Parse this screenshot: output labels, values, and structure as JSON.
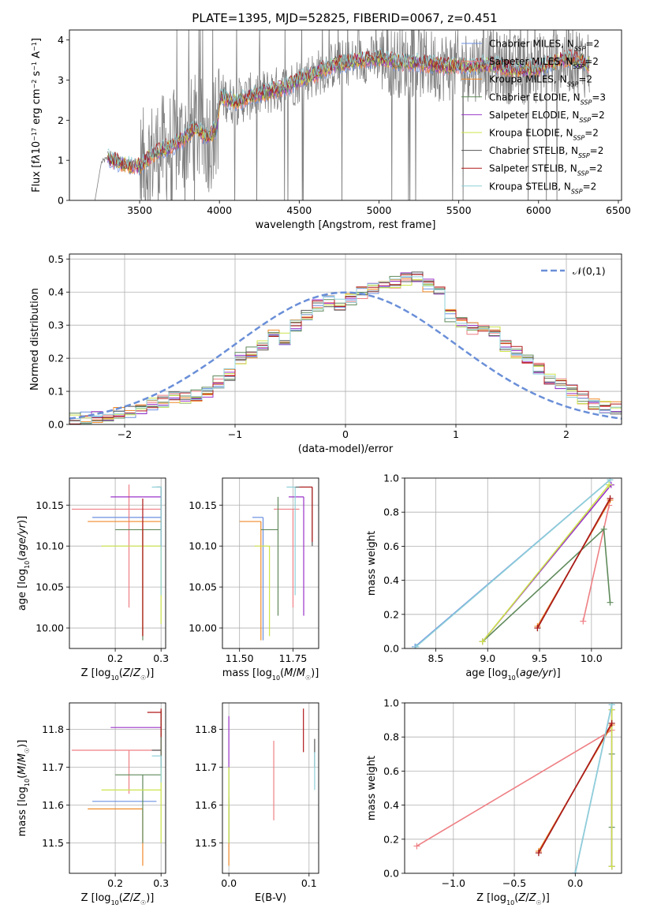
{
  "figure": {
    "title": "PLATE=1395, MJD=52825, FIBERID=0067, z=0.451"
  },
  "models": [
    {
      "name": "Chabrier MILES",
      "label_pre": "Chabrier MILES, N",
      "label_post": "=2",
      "color": "#6a8fe0",
      "n_ssp": 2
    },
    {
      "name": "Salpeter MILES",
      "label_pre": "Salpeter MILES, N",
      "label_post": "=2",
      "color": "#ee7f84",
      "n_ssp": 2
    },
    {
      "name": "Kroupa MILES",
      "label_pre": "Kroupa MILES, N",
      "label_post": "=2",
      "color": "#f08a28",
      "n_ssp": 2
    },
    {
      "name": "Chabrier ELODIE",
      "label_pre": "Chabrier ELODIE, N",
      "label_post": "=3",
      "color": "#5f8a5a",
      "n_ssp": 3
    },
    {
      "name": "Salpeter ELODIE",
      "label_pre": "Salpeter ELODIE, N",
      "label_post": "=2",
      "color": "#9a33c8",
      "n_ssp": 2
    },
    {
      "name": "Kroupa ELODIE",
      "label_pre": "Kroupa ELODIE, N",
      "label_post": "=2",
      "color": "#cce34a",
      "n_ssp": 2
    },
    {
      "name": "Chabrier STELIB",
      "label_pre": "Chabrier STELIB, N",
      "label_post": "=2",
      "color": "#555555",
      "n_ssp": 2
    },
    {
      "name": "Salpeter STELIB",
      "label_pre": "Salpeter STELIB, N",
      "label_post": "=2",
      "color": "#b01818",
      "n_ssp": 2
    },
    {
      "name": "Kroupa STELIB",
      "label_pre": "Kroupa STELIB, N",
      "label_post": "=2",
      "color": "#8fd0d8",
      "n_ssp": 2
    }
  ],
  "chart_data": [
    {
      "id": "spectrum",
      "type": "line",
      "xlabel": "wavelength [Angstrom, rest frame]",
      "ylabel_html": "Flux [f<tspan font-style='italic'>λ</tspan>10<tspan baseline-shift='super' font-size='8'>−17</tspan> erg cm<tspan baseline-shift='super' font-size='8'>−2</tspan> s<tspan baseline-shift='super' font-size='8'>−1</tspan> A<tspan baseline-shift='super' font-size='8'>−1</tspan>]",
      "xlim": [
        3060,
        6520
      ],
      "ylim": [
        0,
        4.25
      ],
      "xticks": [
        3500,
        4000,
        4500,
        5000,
        5500,
        6000,
        6500
      ],
      "yticks": [
        0,
        1,
        2,
        3,
        4
      ],
      "data_color": "#808080",
      "data_start": 3220,
      "noise_start": 3500,
      "continuum": {
        "x": [
          3220,
          3260,
          3300,
          3400,
          3500,
          3600,
          3700,
          3780,
          3850,
          3930,
          3980,
          4010,
          4100,
          4200,
          4300,
          4400,
          4500,
          4600,
          4700,
          4800,
          4900,
          5000,
          5100,
          5200,
          5300,
          5400,
          5500,
          5600,
          5700,
          5800,
          5900,
          6000,
          6100,
          6200,
          6320
        ],
        "y": [
          0.0,
          0.95,
          1.05,
          0.9,
          0.85,
          1.2,
          1.35,
          1.55,
          1.8,
          1.55,
          1.8,
          2.6,
          2.45,
          2.6,
          2.7,
          2.8,
          3.0,
          3.15,
          3.35,
          3.45,
          3.5,
          3.55,
          3.45,
          3.45,
          3.4,
          3.35,
          3.35,
          3.35,
          3.4,
          3.3,
          3.25,
          3.3,
          3.45,
          3.55,
          3.4
        ]
      },
      "model_x_range": [
        3300,
        6320
      ]
    },
    {
      "id": "residuals",
      "type": "histogram",
      "xlabel": "(data-model)/error",
      "ylabel": "Normed distribution",
      "xlim": [
        -2.5,
        2.5
      ],
      "ylim": [
        0,
        0.515
      ],
      "xticks": [
        -2,
        -1,
        0,
        1,
        2
      ],
      "xtick_labels": [
        "−2",
        "−1",
        "0",
        "1",
        "2"
      ],
      "yticks": [
        0.0,
        0.1,
        0.2,
        0.3,
        0.4,
        0.5
      ],
      "ytick_labels": [
        "0.0",
        "0.1",
        "0.2",
        "0.3",
        "0.4",
        "0.5"
      ],
      "legend": "𝒩(0,1)",
      "normal_color": "#6a8fd8",
      "bin_width": 0.1,
      "bin_start": -2.5,
      "base_counts": [
        0.02,
        0.02,
        0.025,
        0.03,
        0.035,
        0.04,
        0.05,
        0.06,
        0.07,
        0.08,
        0.08,
        0.09,
        0.1,
        0.13,
        0.15,
        0.2,
        0.22,
        0.24,
        0.27,
        0.26,
        0.3,
        0.33,
        0.36,
        0.37,
        0.36,
        0.38,
        0.4,
        0.41,
        0.42,
        0.43,
        0.44,
        0.45,
        0.42,
        0.41,
        0.33,
        0.31,
        0.29,
        0.3,
        0.28,
        0.24,
        0.22,
        0.19,
        0.17,
        0.14,
        0.12,
        0.1,
        0.08,
        0.06,
        0.05,
        0.05
      ]
    },
    {
      "id": "age-vs-Z",
      "type": "errorbar",
      "xlabel_html": "Z [log<tspan baseline-shift='sub' font-size='8'>10</tspan>(<tspan font-style='italic'>Z</tspan>/<tspan font-style='italic'>Z</tspan><tspan baseline-shift='sub' font-size='8'>☉</tspan>)]",
      "ylabel_html": "age  [log<tspan baseline-shift='sub' font-size='8'>10</tspan>(<tspan font-style='italic'>age/yr</tspan>)]",
      "xlim": [
        0.1,
        0.31
      ],
      "ylim": [
        9.975,
        10.183
      ],
      "xticks": [
        0.2,
        0.3
      ],
      "xtick_labels": [
        "0.2",
        "0.3"
      ],
      "yticks": [
        10.0,
        10.05,
        10.1,
        10.15
      ],
      "ytick_labels": [
        "10.00",
        "10.05",
        "10.10",
        "10.15"
      ],
      "points": [
        {
          "m": 0,
          "x": 0.3,
          "y": 10.135,
          "xlo": 0.15,
          "xhi": 0.3,
          "ylo": 10.135,
          "yhi": 10.135
        },
        {
          "m": 1,
          "x": 0.23,
          "y": 10.145,
          "xlo": 0.105,
          "xhi": 0.3,
          "ylo": 10.025,
          "yhi": 10.175
        },
        {
          "m": 2,
          "x": 0.26,
          "y": 10.13,
          "xlo": 0.14,
          "xhi": 0.3,
          "ylo": 9.99,
          "yhi": 10.13
        },
        {
          "m": 3,
          "x": 0.26,
          "y": 10.12,
          "xlo": 0.2,
          "xhi": 0.3,
          "ylo": 9.985,
          "yhi": 10.12
        },
        {
          "m": 4,
          "x": 0.3,
          "y": 10.16,
          "xlo": 0.19,
          "xhi": 0.3,
          "ylo": 10.16,
          "yhi": 10.16
        },
        {
          "m": 5,
          "x": 0.3,
          "y": 10.1,
          "xlo": 0.17,
          "xhi": 0.3,
          "ylo": 10.005,
          "yhi": 10.1
        },
        {
          "m": 6,
          "x": 0.3,
          "y": 10.172,
          "xlo": 0.29,
          "xhi": 0.3,
          "ylo": 10.1,
          "yhi": 10.172
        },
        {
          "m": 7,
          "x": 0.26,
          "y": 10.158,
          "xlo": 0.26,
          "xhi": 0.26,
          "ylo": 9.99,
          "yhi": 10.158
        },
        {
          "m": 8,
          "x": 0.3,
          "y": 10.172,
          "xlo": 0.28,
          "xhi": 0.3,
          "ylo": 10.04,
          "yhi": 10.172
        }
      ]
    },
    {
      "id": "age-vs-mass",
      "type": "errorbar",
      "xlabel_html": "mass [log<tspan baseline-shift='sub' font-size='8'>10</tspan>(<tspan font-style='italic'>M</tspan>/<tspan font-style='italic'>M</tspan><tspan baseline-shift='sub' font-size='8'>☉</tspan>)]",
      "xlim": [
        11.42,
        11.87
      ],
      "ylim": [
        9.975,
        10.183
      ],
      "xticks": [
        11.5,
        11.75
      ],
      "xtick_labels": [
        "11.50",
        "11.75"
      ],
      "yticks": [
        10.0,
        10.05,
        10.1,
        10.15
      ],
      "ytick_labels": [
        "10.00",
        "10.05",
        "10.10",
        "10.15"
      ],
      "points": [
        {
          "m": 0,
          "x": 11.61,
          "y": 10.135,
          "xlo": 11.56,
          "xhi": 11.61,
          "ylo": 9.985,
          "yhi": 10.135
        },
        {
          "m": 1,
          "x": 11.75,
          "y": 10.145,
          "xlo": 11.66,
          "xhi": 11.78,
          "ylo": 10.025,
          "yhi": 10.145
        },
        {
          "m": 2,
          "x": 11.6,
          "y": 10.13,
          "xlo": 11.5,
          "xhi": 11.6,
          "ylo": 9.985,
          "yhi": 10.13
        },
        {
          "m": 3,
          "x": 11.68,
          "y": 10.12,
          "xlo": 11.6,
          "xhi": 11.68,
          "ylo": 10.015,
          "yhi": 10.16
        },
        {
          "m": 4,
          "x": 11.8,
          "y": 10.16,
          "xlo": 11.73,
          "xhi": 11.8,
          "ylo": 10.015,
          "yhi": 10.16
        },
        {
          "m": 5,
          "x": 11.64,
          "y": 10.1,
          "xlo": 11.57,
          "xhi": 11.64,
          "ylo": 9.99,
          "yhi": 10.1
        },
        {
          "m": 6,
          "x": 11.84,
          "y": 10.172,
          "xlo": 11.76,
          "xhi": 11.84,
          "ylo": 10.1,
          "yhi": 10.172
        },
        {
          "m": 7,
          "x": 11.84,
          "y": 10.172,
          "xlo": 11.78,
          "xhi": 11.84,
          "ylo": 10.105,
          "yhi": 10.172
        },
        {
          "m": 8,
          "x": 11.76,
          "y": 10.172,
          "xlo": 11.72,
          "xhi": 11.76,
          "ylo": 10.04,
          "yhi": 10.172
        }
      ]
    },
    {
      "id": "massweight-vs-age",
      "type": "line",
      "xlabel_html": "age  [log<tspan baseline-shift='sub' font-size='8'>10</tspan>(<tspan font-style='italic'>age/yr</tspan>)]",
      "ylabel": "mass weight",
      "xlim": [
        8.2,
        10.29
      ],
      "ylim": [
        0,
        1.0
      ],
      "xticks": [
        8.5,
        9.0,
        9.5,
        10.0
      ],
      "xtick_labels": [
        "8.5",
        "9.0",
        "9.5",
        "10.0"
      ],
      "yticks": [
        0,
        0.2,
        0.4,
        0.6,
        0.8,
        1.0
      ],
      "ytick_labels": [
        "0.0",
        "0.2",
        "0.4",
        "0.6",
        "0.8",
        "1.0"
      ],
      "series": [
        {
          "m": 0,
          "x": [
            8.3,
            10.18
          ],
          "y": [
            0.01,
            0.99
          ]
        },
        {
          "m": 1,
          "x": [
            9.92,
            10.17
          ],
          "y": [
            0.16,
            0.84
          ]
        },
        {
          "m": 2,
          "x": [
            9.48,
            10.18
          ],
          "y": [
            0.13,
            0.87
          ]
        },
        {
          "m": 3,
          "x": [
            8.95,
            10.12,
            10.18
          ],
          "y": [
            0.04,
            0.7,
            0.27
          ]
        },
        {
          "m": 4,
          "x": [
            8.95,
            10.19
          ],
          "y": [
            0.04,
            0.96
          ]
        },
        {
          "m": 5,
          "x": [
            8.95,
            10.17
          ],
          "y": [
            0.04,
            0.96
          ]
        },
        {
          "m": 6,
          "x": [
            9.48,
            10.18
          ],
          "y": [
            0.12,
            0.88
          ]
        },
        {
          "m": 7,
          "x": [
            9.48,
            10.18
          ],
          "y": [
            0.12,
            0.88
          ]
        },
        {
          "m": 8,
          "x": [
            8.31,
            10.18
          ],
          "y": [
            0.01,
            0.99
          ]
        }
      ]
    },
    {
      "id": "mass-vs-Z",
      "type": "errorbar",
      "xlabel_html": "Z [log<tspan baseline-shift='sub' font-size='8'>10</tspan>(<tspan font-style='italic'>Z</tspan>/<tspan font-style='italic'>Z</tspan><tspan baseline-shift='sub' font-size='8'>☉</tspan>)]",
      "ylabel_html": "mass [log<tspan baseline-shift='sub' font-size='8'>10</tspan>(<tspan font-style='italic'>M</tspan>/<tspan font-style='italic'>M</tspan><tspan baseline-shift='sub' font-size='8'>☉</tspan>)]",
      "xlim": [
        0.1,
        0.31
      ],
      "ylim": [
        11.42,
        11.87
      ],
      "xticks": [
        0.2,
        0.3
      ],
      "xtick_labels": [
        "0.2",
        "0.3"
      ],
      "yticks": [
        11.5,
        11.6,
        11.7,
        11.8
      ],
      "ytick_labels": [
        "11.5",
        "11.6",
        "11.7",
        "11.8"
      ],
      "points": [
        {
          "m": 0,
          "x": 0.26,
          "y": 11.61,
          "xlo": 0.15,
          "xhi": 0.29,
          "ylo": 11.61,
          "yhi": 11.61
        },
        {
          "m": 1,
          "x": 0.23,
          "y": 11.745,
          "xlo": 0.105,
          "xhi": 0.3,
          "ylo": 11.63,
          "yhi": 11.745
        },
        {
          "m": 2,
          "x": 0.26,
          "y": 11.59,
          "xlo": 0.14,
          "xhi": 0.26,
          "ylo": 11.44,
          "yhi": 11.59
        },
        {
          "m": 3,
          "x": 0.26,
          "y": 11.68,
          "xlo": 0.2,
          "xhi": 0.3,
          "ylo": 11.5,
          "yhi": 11.68
        },
        {
          "m": 4,
          "x": 0.3,
          "y": 11.805,
          "xlo": 0.19,
          "xhi": 0.3,
          "ylo": 11.805,
          "yhi": 11.805
        },
        {
          "m": 5,
          "x": 0.3,
          "y": 11.64,
          "xlo": 0.17,
          "xhi": 0.3,
          "ylo": 11.5,
          "yhi": 11.85
        },
        {
          "m": 6,
          "x": 0.3,
          "y": 11.745,
          "xlo": 0.28,
          "xhi": 0.3,
          "ylo": 11.7,
          "yhi": 11.85
        },
        {
          "m": 7,
          "x": 0.3,
          "y": 11.845,
          "xlo": 0.27,
          "xhi": 0.3,
          "ylo": 11.78,
          "yhi": 11.855
        },
        {
          "m": 8,
          "x": 0.3,
          "y": 11.73,
          "xlo": 0.28,
          "xhi": 0.3,
          "ylo": 11.66,
          "yhi": 11.73
        }
      ]
    },
    {
      "id": "mass-vs-EBV",
      "type": "errorbar",
      "xlabel": "E(B-V)",
      "xlim": [
        -0.008,
        0.112
      ],
      "ylim": [
        11.42,
        11.87
      ],
      "xticks": [
        0.0,
        0.1
      ],
      "xtick_labels": [
        "0.0",
        "0.1"
      ],
      "yticks": [
        11.5,
        11.6,
        11.7,
        11.8
      ],
      "ytick_labels": [
        "11.5",
        "11.6",
        "11.7",
        "11.8"
      ],
      "points": [
        {
          "m": 0,
          "x": 0.0,
          "y": 11.6,
          "xlo": 0.0,
          "xhi": 0.0,
          "ylo": 11.5,
          "yhi": 11.62
        },
        {
          "m": 1,
          "x": 0.056,
          "y": 11.67,
          "xlo": 0.056,
          "xhi": 0.056,
          "ylo": 11.56,
          "yhi": 11.77
        },
        {
          "m": 2,
          "x": 0.0,
          "y": 11.5,
          "xlo": 0.0,
          "xhi": 0.0,
          "ylo": 11.44,
          "yhi": 11.6
        },
        {
          "m": 3,
          "x": 0.0,
          "y": 11.6,
          "xlo": 0.0,
          "xhi": 0.0,
          "ylo": 11.5,
          "yhi": 11.7
        },
        {
          "m": 4,
          "x": 0.0,
          "y": 11.77,
          "xlo": 0.0,
          "xhi": 0.0,
          "ylo": 11.7,
          "yhi": 11.835
        },
        {
          "m": 5,
          "x": 0.0,
          "y": 11.6,
          "xlo": 0.0,
          "xhi": 0.0,
          "ylo": 11.5,
          "yhi": 11.7
        },
        {
          "m": 6,
          "x": 0.107,
          "y": 11.74,
          "xlo": 0.107,
          "xhi": 0.107,
          "ylo": 11.7,
          "yhi": 11.775
        },
        {
          "m": 7,
          "x": 0.093,
          "y": 11.8,
          "xlo": 0.093,
          "xhi": 0.093,
          "ylo": 11.74,
          "yhi": 11.855
        },
        {
          "m": 8,
          "x": 0.107,
          "y": 11.69,
          "xlo": 0.107,
          "xhi": 0.107,
          "ylo": 11.64,
          "yhi": 11.74
        }
      ]
    },
    {
      "id": "massweight-vs-Z",
      "type": "line",
      "xlabel_html": "Z [log<tspan baseline-shift='sub' font-size='8'>10</tspan>(<tspan font-style='italic'>Z</tspan>/<tspan font-style='italic'>Z</tspan><tspan baseline-shift='sub' font-size='8'>☉</tspan>)]",
      "ylabel": "mass weight",
      "xlim": [
        -1.4,
        0.38
      ],
      "ylim": [
        0,
        1.0
      ],
      "xticks": [
        -1.0,
        -0.5,
        0.0
      ],
      "xtick_labels": [
        "−1.0",
        "−0.5",
        "0.0"
      ],
      "yticks": [
        0,
        0.2,
        0.4,
        0.6,
        0.8,
        1.0
      ],
      "ytick_labels": [
        "0.0",
        "0.2",
        "0.4",
        "0.6",
        "0.8",
        "1.0"
      ],
      "series": [
        {
          "m": 0,
          "x": [
            0.0,
            0.3
          ],
          "y": [
            0.0,
            0.99
          ]
        },
        {
          "m": 1,
          "x": [
            -1.3,
            0.3
          ],
          "y": [
            0.16,
            0.84
          ]
        },
        {
          "m": 2,
          "x": [
            -0.3,
            0.3
          ],
          "y": [
            0.13,
            0.87
          ]
        },
        {
          "m": 3,
          "x": [
            0.3,
            0.3,
            0.3
          ],
          "y": [
            0.04,
            0.7,
            0.27
          ]
        },
        {
          "m": 4,
          "x": [
            0.3,
            0.3
          ],
          "y": [
            0.04,
            0.96
          ]
        },
        {
          "m": 5,
          "x": [
            0.3,
            0.3
          ],
          "y": [
            0.04,
            0.96
          ]
        },
        {
          "m": 6,
          "x": [
            -0.3,
            0.3
          ],
          "y": [
            0.12,
            0.88
          ]
        },
        {
          "m": 7,
          "x": [
            -0.3,
            0.3
          ],
          "y": [
            0.12,
            0.88
          ]
        },
        {
          "m": 8,
          "x": [
            0.0,
            0.3
          ],
          "y": [
            0.0,
            0.99
          ]
        }
      ]
    }
  ]
}
